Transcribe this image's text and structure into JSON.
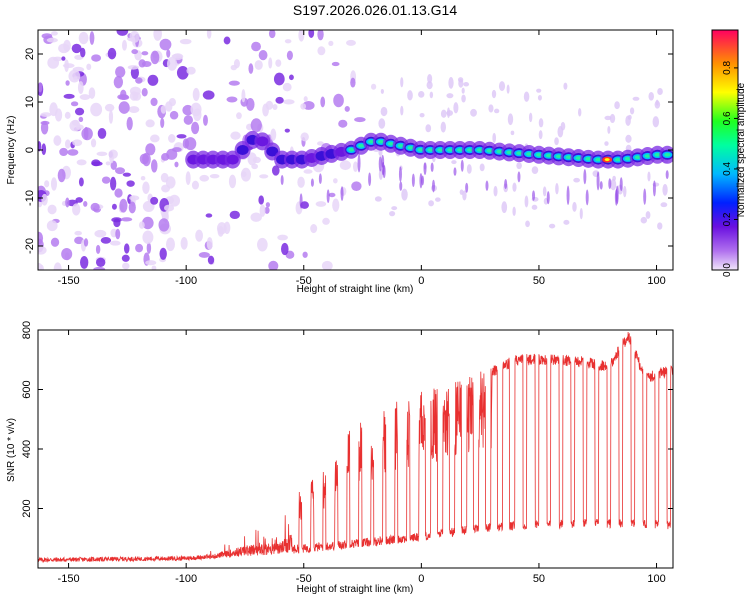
{
  "page_title": "S197.2026.026.01.13.G14",
  "chart_data": [
    {
      "type": "heatmap",
      "title": "S197.2026.026.01.13.G14",
      "xlabel": "Height of straight line (km)",
      "ylabel": "Frequency (Hz)",
      "xlim": [
        -163,
        107
      ],
      "ylim": [
        -25,
        25
      ],
      "x_ticks": [
        -150,
        -100,
        -50,
        0,
        50,
        100
      ],
      "y_ticks": [
        -20,
        -10,
        0,
        10,
        20
      ],
      "colorbar": {
        "label": "Normalized spectral amplitude",
        "range": [
          0.0,
          0.95
        ],
        "ticks": [
          0.0,
          0.2,
          0.4,
          0.6,
          0.8
        ],
        "colormap": "rainbow (magenta-white to red)"
      },
      "ridge": {
        "description": "Signal ridge near 0 Hz, strongest between -25 km and 105 km",
        "frequency_hz": [
          [
            -95,
            -2
          ],
          [
            -80,
            -2
          ],
          [
            -70,
            3
          ],
          [
            -60,
            -2
          ],
          [
            -50,
            -2
          ],
          [
            -30,
            0
          ],
          [
            -20,
            2
          ],
          [
            0,
            0
          ],
          [
            25,
            0
          ],
          [
            50,
            -1
          ],
          [
            75,
            -2
          ],
          [
            85,
            -2
          ],
          [
            100,
            -1
          ]
        ]
      }
    },
    {
      "type": "line",
      "xlabel": "Height of straight line (km)",
      "ylabel": "SNR (10 * v/v)",
      "xlim": [
        -163,
        107
      ],
      "ylim": [
        0,
        800
      ],
      "x_ticks": [
        -150,
        -100,
        -50,
        0,
        50,
        100
      ],
      "y_ticks": [
        200,
        400,
        600,
        800
      ],
      "series": [
        {
          "name": "SNR",
          "color": "#e83030",
          "baseline_envelope": [
            [
              -160,
              20
            ],
            [
              -100,
              25
            ],
            [
              -75,
              40
            ],
            [
              -50,
              50
            ],
            [
              -25,
              70
            ],
            [
              0,
              90
            ],
            [
              25,
              120
            ],
            [
              50,
              130
            ],
            [
              75,
              135
            ],
            [
              105,
              130
            ]
          ],
          "peak_envelope": [
            [
              -90,
              60
            ],
            [
              -75,
              130
            ],
            [
              -60,
              150
            ],
            [
              -50,
              280
            ],
            [
              -40,
              340
            ],
            [
              -30,
              470
            ],
            [
              -20,
              520
            ],
            [
              -10,
              580
            ],
            [
              0,
              600
            ],
            [
              10,
              620
            ],
            [
              20,
              640
            ],
            [
              30,
              680
            ],
            [
              40,
              720
            ],
            [
              50,
              720
            ],
            [
              60,
              720
            ],
            [
              70,
              710
            ],
            [
              80,
              700
            ],
            [
              88,
              800
            ],
            [
              95,
              660
            ],
            [
              105,
              680
            ]
          ]
        }
      ]
    }
  ]
}
